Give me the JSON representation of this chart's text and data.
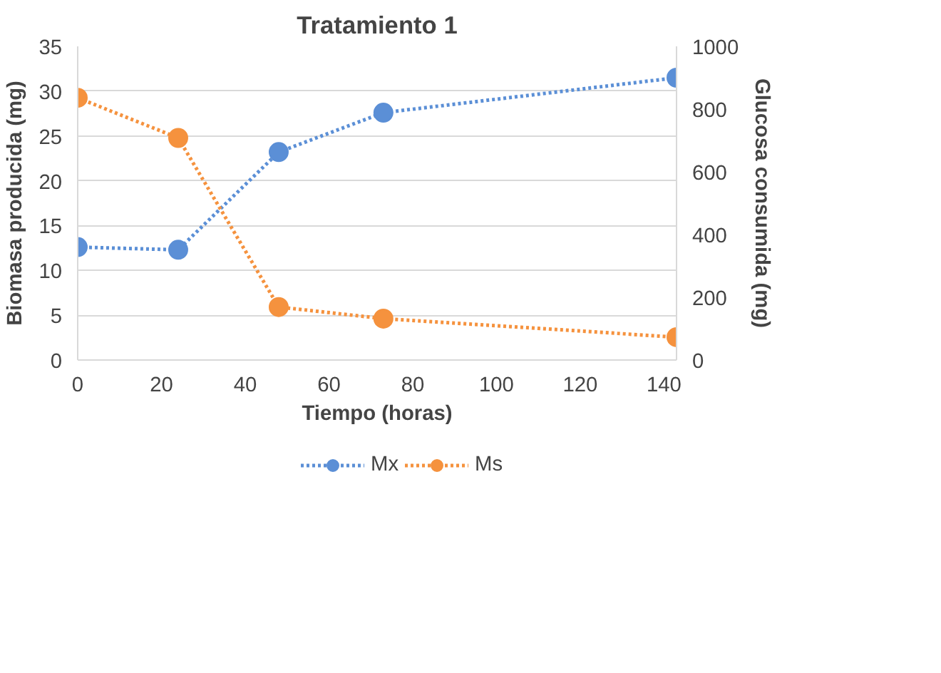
{
  "chart_data": {
    "type": "line",
    "title": "Tratamiento 1",
    "xlabel": "Tiempo (horas)",
    "ylabel": "Biomasa producida (mg)",
    "y2label": "Glucosa consumida (mg)",
    "x": [
      0,
      24,
      48,
      73,
      143
    ],
    "series": [
      {
        "name": "Mx",
        "color": "#5b8fd6",
        "values": [
          12.6,
          12.3,
          23.2,
          27.6,
          31.5
        ]
      },
      {
        "name": "Ms",
        "color": "#f5923e",
        "values": [
          836,
          708,
          169,
          132,
          73
        ],
        "axis": "y2"
      }
    ],
    "xlim": [
      0,
      143
    ],
    "xticks": [
      0,
      20,
      40,
      60,
      80,
      100,
      120,
      140
    ],
    "ylim": [
      0,
      35
    ],
    "yticks": [
      0,
      5,
      10,
      15,
      20,
      25,
      30,
      35
    ],
    "y2lim": [
      0,
      1000
    ],
    "y2ticks": [
      0,
      200,
      400,
      600,
      800,
      1000
    ],
    "grid": "y",
    "legend": "bottom",
    "marker": "circle",
    "line_style": "dotted"
  }
}
